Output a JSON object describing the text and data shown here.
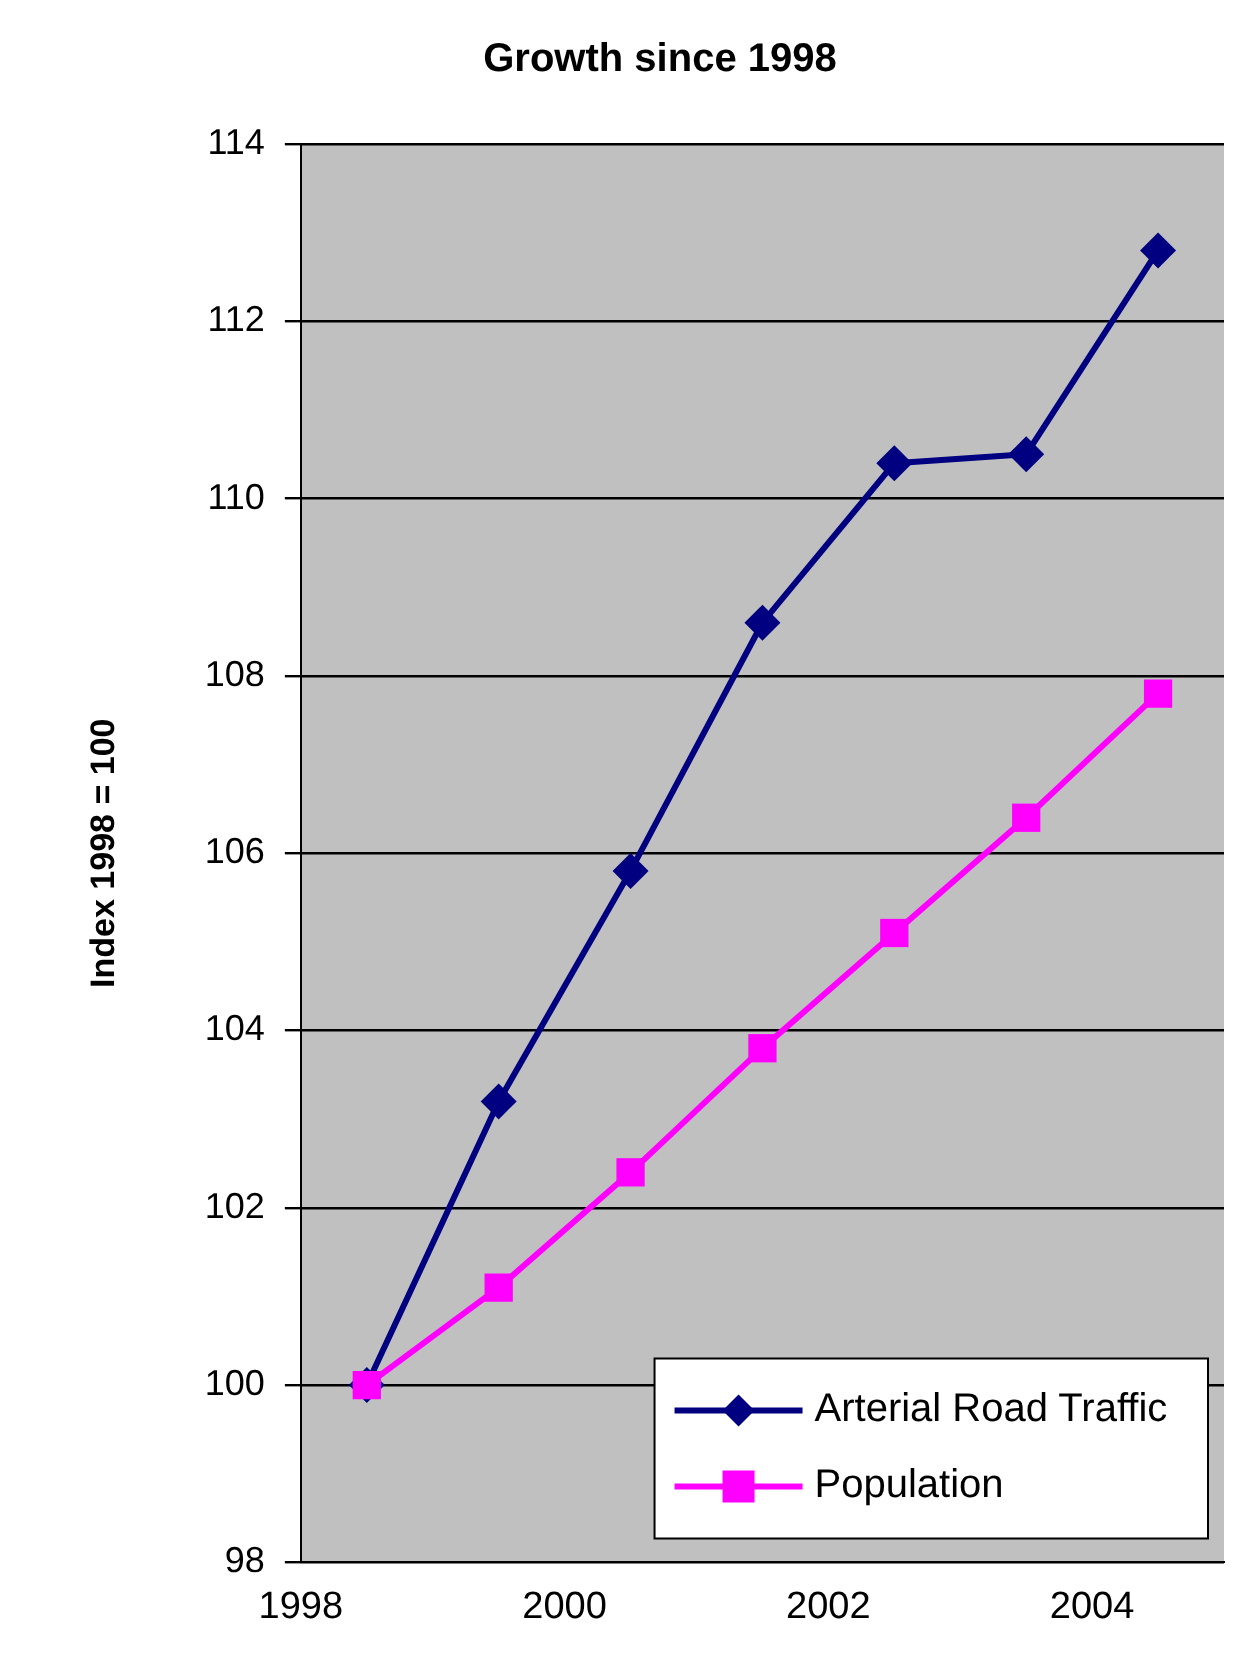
{
  "chart_data": {
    "type": "line",
    "title": "Growth since 1998",
    "ylabel": "Index 1998 = 100",
    "x": [
      1998.5,
      1999.5,
      2000.5,
      2001.5,
      2002.5,
      2003.5,
      2004.5
    ],
    "series": [
      {
        "name": "Arterial Road Traffic",
        "color": "#000080",
        "marker": "diamond",
        "values": [
          100,
          103.2,
          105.8,
          108.6,
          110.4,
          110.5,
          112.8
        ]
      },
      {
        "name": "Population",
        "color": "#ff00ff",
        "marker": "square",
        "values": [
          100,
          101.1,
          102.4,
          103.8,
          105.1,
          106.4,
          107.8
        ]
      }
    ],
    "xlim": [
      1998,
      2005
    ],
    "xticks": [
      1998,
      2000,
      2002,
      2004
    ],
    "ylim": [
      98,
      114
    ],
    "yticks": [
      98,
      100,
      102,
      104,
      106,
      108,
      110,
      112,
      114
    ],
    "grid": "y",
    "legend": "bottom right",
    "line_style": "solid"
  }
}
